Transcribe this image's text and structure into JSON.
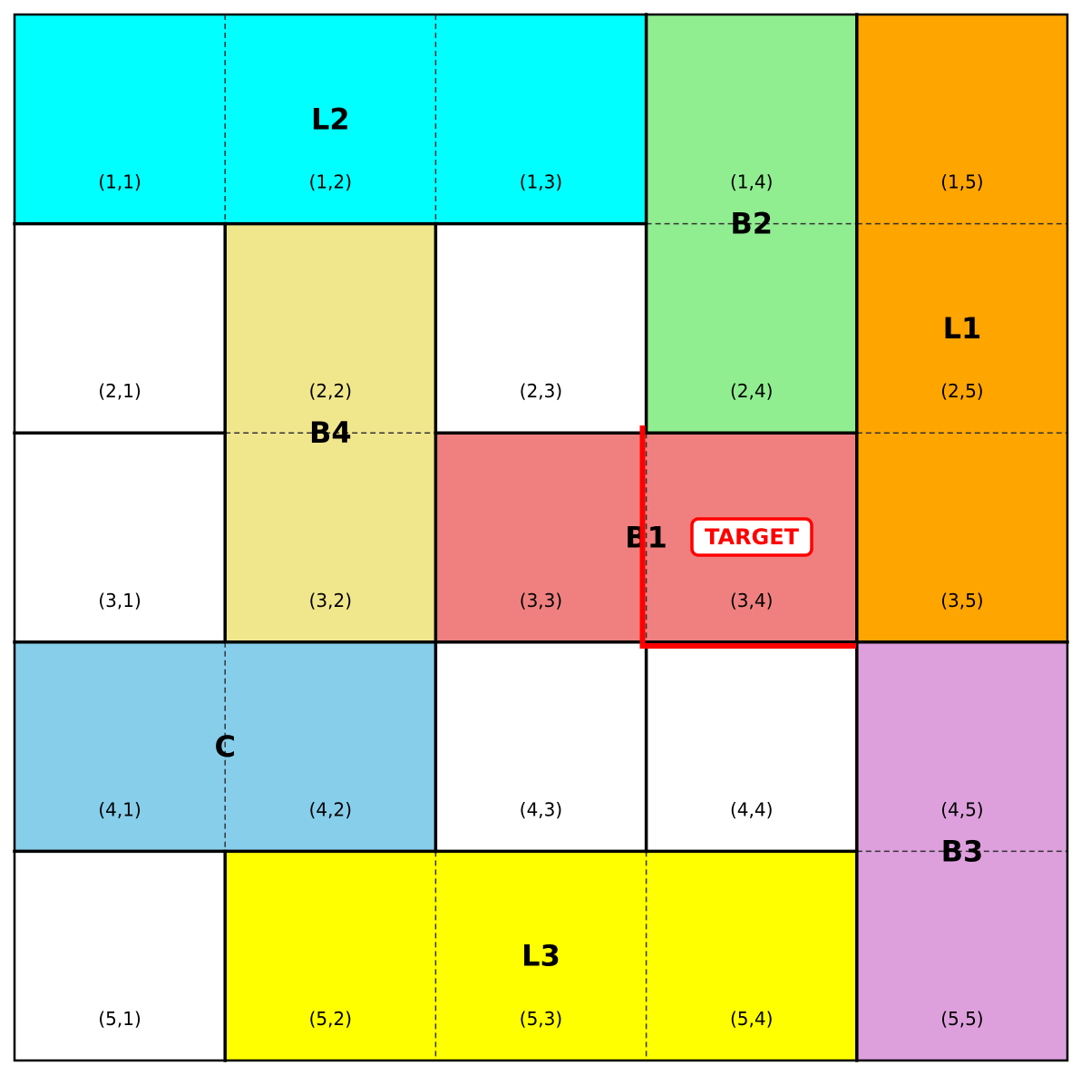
{
  "puzzle": {
    "rows": 5,
    "cols": 5,
    "target_label": "TARGET",
    "target_color": "#ff0000",
    "pieces": [
      {
        "id": "L2",
        "label": "L2",
        "color": "#00ffff",
        "r1": 1,
        "c1": 1,
        "r2": 1,
        "c2": 3
      },
      {
        "id": "B2",
        "label": "B2",
        "color": "#90ee90",
        "r1": 1,
        "c1": 4,
        "r2": 2,
        "c2": 4
      },
      {
        "id": "L1",
        "label": "L1",
        "color": "#ffa500",
        "r1": 1,
        "c1": 5,
        "r2": 3,
        "c2": 5
      },
      {
        "id": "B4",
        "label": "B4",
        "color": "#f0e68c",
        "r1": 2,
        "c1": 2,
        "r2": 3,
        "c2": 2
      },
      {
        "id": "B1",
        "label": "B1",
        "color": "#f08080",
        "r1": 3,
        "c1": 3,
        "r2": 3,
        "c2": 4
      },
      {
        "id": "C",
        "label": "C",
        "color": "#87ceeb",
        "r1": 4,
        "c1": 1,
        "r2": 4,
        "c2": 2
      },
      {
        "id": "B3",
        "label": "B3",
        "color": "#dda0dd",
        "r1": 4,
        "c1": 5,
        "r2": 5,
        "c2": 5
      },
      {
        "id": "L3",
        "label": "L3",
        "color": "#ffff00",
        "r1": 5,
        "c1": 2,
        "r2": 5,
        "c2": 4
      }
    ],
    "cells": [
      "(1,1)",
      "(1,2)",
      "(1,3)",
      "(1,4)",
      "(1,5)",
      "(2,1)",
      "(2,2)",
      "(2,3)",
      "(2,4)",
      "(2,5)",
      "(3,1)",
      "(3,2)",
      "(3,3)",
      "(3,4)",
      "(3,5)",
      "(4,1)",
      "(4,2)",
      "(4,3)",
      "(4,4)",
      "(4,5)",
      "(5,1)",
      "(5,2)",
      "(5,3)",
      "(5,4)",
      "(5,5)"
    ]
  }
}
